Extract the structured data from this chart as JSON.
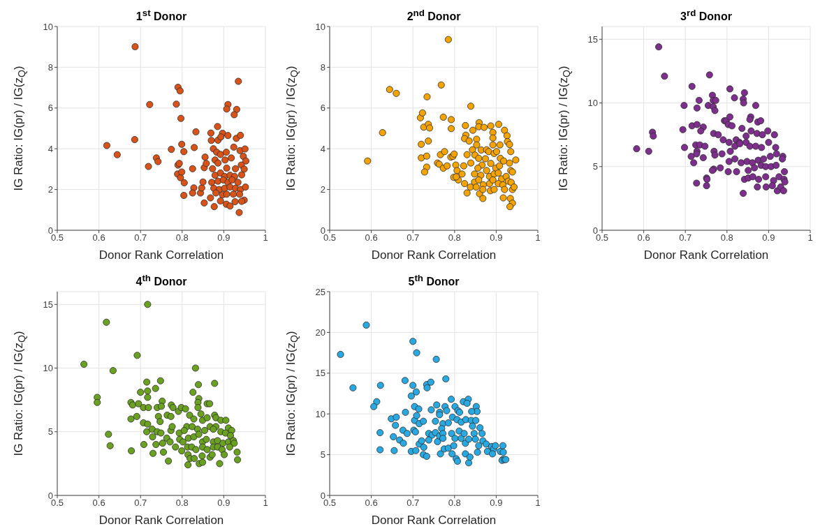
{
  "chart_data": [
    {
      "type": "scatter",
      "title": "1$^{st}$ Donor",
      "xlabel": "Donor Rank Correlation",
      "ylabel": "IG Ratio: IG(pr) / IG(z$_{Q}$)",
      "xlim": [
        0.5,
        1
      ],
      "xticks": [
        0.5,
        0.6,
        0.7,
        0.8,
        0.9,
        1
      ],
      "ylim": [
        0,
        10
      ],
      "yticks": [
        0,
        2,
        4,
        6,
        8,
        10
      ],
      "grid": true,
      "marker": "circle",
      "color": "#d95319",
      "x": [
        0.687,
        0.935,
        0.79,
        0.795,
        0.722,
        0.786,
        0.797,
        0.91,
        0.907,
        0.931,
        0.925,
        0.619,
        0.644,
        0.686,
        0.719,
        0.738,
        0.742,
        0.774,
        0.799,
        0.804,
        0.79,
        0.793,
        0.789,
        0.796,
        0.799,
        0.805,
        0.804,
        0.829,
        0.833,
        0.825,
        0.828,
        0.825,
        0.844,
        0.847,
        0.85,
        0.855,
        0.853,
        0.858,
        0.853,
        0.869,
        0.885,
        0.897,
        0.91,
        0.93,
        0.94,
        0.87,
        0.886,
        0.893,
        0.875,
        0.883,
        0.892,
        0.906,
        0.924,
        0.939,
        0.951,
        0.879,
        0.903,
        0.918,
        0.947,
        0.953,
        0.873,
        0.886,
        0.907,
        0.928,
        0.942,
        0.949,
        0.879,
        0.892,
        0.902,
        0.915,
        0.926,
        0.943,
        0.871,
        0.886,
        0.899,
        0.91,
        0.92,
        0.934,
        0.876,
        0.889,
        0.902,
        0.915,
        0.928,
        0.94,
        0.952,
        0.868,
        0.881,
        0.897,
        0.907,
        0.923,
        0.938,
        0.949,
        0.877,
        0.892,
        0.906,
        0.915,
        0.927,
        0.943,
        0.937
      ],
      "values": [
        9.01,
        7.31,
        7.02,
        6.84,
        6.17,
        6.19,
        5.49,
        6.17,
        5.95,
        5.93,
        5.67,
        4.16,
        3.71,
        4.45,
        3.13,
        3.55,
        3.37,
        3.97,
        4.22,
        3.86,
        3.2,
        3.28,
        2.76,
        2.58,
        2.86,
        2.33,
        1.71,
        4.06,
        4.83,
        3.02,
        2.08,
        1.83,
        1.83,
        2.08,
        2.37,
        3.59,
        3.07,
        3.28,
        1.34,
        4.77,
        5.09,
        4.76,
        4.65,
        4.51,
        4.66,
        4.41,
        4.42,
        4.58,
        4.0,
        3.83,
        3.72,
        3.83,
        4.08,
        3.91,
        3.99,
        3.45,
        3.45,
        3.55,
        3.63,
        3.4,
        3.02,
        3.3,
        3.05,
        3.02,
        3.2,
        3.0,
        2.7,
        2.81,
        2.64,
        2.7,
        2.64,
        2.72,
        2.35,
        2.41,
        2.47,
        2.35,
        2.47,
        2.35,
        2.06,
        2.0,
        2.06,
        2.12,
        2.06,
        2.0,
        2.12,
        1.59,
        1.83,
        1.74,
        1.77,
        1.77,
        1.77,
        1.48,
        1.16,
        1.44,
        1.28,
        1.19,
        1.4,
        1.42,
        0.87
      ]
    },
    {
      "type": "scatter",
      "title": "2$^{nd}$ Donor",
      "xlabel": "Donor Rank Correlation",
      "ylabel": "IG Ratio: IG(pr) / IG(z$_{Q}$)",
      "xlim": [
        0.5,
        1
      ],
      "xticks": [
        0.5,
        0.6,
        0.7,
        0.8,
        0.9,
        1
      ],
      "ylim": [
        0,
        10
      ],
      "yticks": [
        0,
        2,
        4,
        6,
        8,
        10
      ],
      "grid": true,
      "marker": "circle",
      "color": "#f5a300",
      "x": [
        0.785,
        0.768,
        0.644,
        0.66,
        0.734,
        0.839,
        0.718,
        0.723,
        0.773,
        0.792,
        0.792,
        0.726,
        0.737,
        0.74,
        0.627,
        0.737,
        0.72,
        0.591,
        0.72,
        0.733,
        0.733,
        0.728,
        0.759,
        0.763,
        0.766,
        0.773,
        0.776,
        0.782,
        0.791,
        0.796,
        0.799,
        0.803,
        0.798,
        0.806,
        0.809,
        0.804,
        0.818,
        0.822,
        0.826,
        0.827,
        0.824,
        0.835,
        0.844,
        0.859,
        0.858,
        0.871,
        0.853,
        0.887,
        0.892,
        0.892,
        0.892,
        0.906,
        0.909,
        0.92,
        0.926,
        0.927,
        0.932,
        0.935,
        0.947,
        0.932,
        0.83,
        0.839,
        0.843,
        0.849,
        0.853,
        0.864,
        0.877,
        0.882,
        0.858,
        0.866,
        0.874,
        0.887,
        0.895,
        0.901,
        0.91,
        0.918,
        0.899,
        0.908,
        0.848,
        0.856,
        0.863,
        0.877,
        0.884,
        0.895,
        0.905,
        0.913,
        0.924,
        0.935,
        0.939,
        0.824,
        0.838,
        0.848,
        0.858,
        0.869,
        0.884,
        0.892,
        0.905,
        0.916,
        0.929,
        0.936,
        0.83,
        0.852,
        0.86,
        0.868,
        0.886,
        0.895,
        0.92,
        0.939,
        0.943,
        0.868,
        0.917,
        0.934,
        0.939,
        0.933
      ],
      "values": [
        9.36,
        7.13,
        6.91,
        6.72,
        6.55,
        6.09,
        5.52,
        5.76,
        5.55,
        5.43,
        4.99,
        5.06,
        5.2,
        5.02,
        4.79,
        4.38,
        4.22,
        3.4,
        3.55,
        3.64,
        3.1,
        2.86,
        3.3,
        3.24,
        3.71,
        3.05,
        3.86,
        3.16,
        3.59,
        3.63,
        3.74,
        3.2,
        2.6,
        2.93,
        2.47,
        2.62,
        2.76,
        3.16,
        5.14,
        4.67,
        4.5,
        4.38,
        4.91,
        5.28,
        5.08,
        5.05,
        4.47,
        5.12,
        4.8,
        4.53,
        4.19,
        5.2,
        4.19,
        4.91,
        4.64,
        4.35,
        4.21,
        3.86,
        3.45,
        3.3,
        3.71,
        3.3,
        3.95,
        3.69,
        4.19,
        3.94,
        3.95,
        3.86,
        3.53,
        3.2,
        3.51,
        3.28,
        3.77,
        3.86,
        3.53,
        3.4,
        3.05,
        3.16,
        2.76,
        3.05,
        2.7,
        2.93,
        2.64,
        2.76,
        2.81,
        2.52,
        2.64,
        2.93,
        2.86,
        2.29,
        2.12,
        2.37,
        2.47,
        2.23,
        2.29,
        2.47,
        2.29,
        2.23,
        2.41,
        2.35,
        1.83,
        2.12,
        1.79,
        2.0,
        1.94,
        2.0,
        2.0,
        2.0,
        2.12,
        1.56,
        1.59,
        1.56,
        1.33,
        1.16
      ]
    },
    {
      "type": "scatter",
      "title": "3$^{rd}$ Donor",
      "xlabel": "Donor Rank Correlation",
      "ylabel": "IG Ratio: IG(pr) / IG(z$_{Q}$)",
      "xlim": [
        0.5,
        1
      ],
      "xticks": [
        0.5,
        0.6,
        0.7,
        0.8,
        0.9,
        1
      ],
      "ylim": [
        0,
        16
      ],
      "yticks": [
        0,
        5,
        10,
        15
      ],
      "grid": true,
      "marker": "circle",
      "color": "#7e2f8e",
      "x": [
        0.636,
        0.65,
        0.758,
        0.716,
        0.807,
        0.818,
        0.842,
        0.839,
        0.84,
        0.765,
        0.767,
        0.773,
        0.733,
        0.697,
        0.728,
        0.755,
        0.767,
        0.771,
        0.869,
        0.794,
        0.798,
        0.807,
        0.857,
        0.855,
        0.874,
        0.881,
        0.716,
        0.728,
        0.743,
        0.737,
        0.694,
        0.621,
        0.623,
        0.768,
        0.779,
        0.803,
        0.812,
        0.583,
        0.612,
        0.698,
        0.725,
        0.735,
        0.747,
        0.728,
        0.727,
        0.714,
        0.72,
        0.743,
        0.769,
        0.771,
        0.788,
        0.791,
        0.805,
        0.822,
        0.83,
        0.836,
        0.846,
        0.858,
        0.872,
        0.885,
        0.898,
        0.914,
        0.808,
        0.819,
        0.831,
        0.846,
        0.855,
        0.869,
        0.883,
        0.9,
        0.917,
        0.805,
        0.819,
        0.834,
        0.848,
        0.861,
        0.875,
        0.888,
        0.904,
        0.919,
        0.934,
        0.933,
        0.803,
        0.823,
        0.851,
        0.866,
        0.882,
        0.893,
        0.906,
        0.918,
        0.768,
        0.784,
        0.765,
        0.751,
        0.752,
        0.727,
        0.751,
        0.842,
        0.851,
        0.862,
        0.876,
        0.893,
        0.912,
        0.925,
        0.938,
        0.937,
        0.839,
        0.873,
        0.894,
        0.909,
        0.921,
        0.929,
        0.936,
        0.939
      ],
      "values": [
        14.4,
        12.1,
        12.2,
        11.3,
        11.1,
        10.4,
        10.8,
        10.3,
        10.0,
        10.6,
        10.2,
        10.2,
        10.2,
        9.8,
        9.6,
        9.8,
        9.7,
        9.4,
        9.8,
        8.6,
        8.6,
        8.9,
        8.9,
        8.7,
        8.5,
        8.6,
        8.2,
        8.3,
        8.1,
        7.8,
        7.9,
        7.7,
        7.4,
        7.6,
        7.5,
        8.3,
        8.2,
        6.4,
        6.2,
        6.5,
        6.7,
        6.7,
        6.6,
        6.2,
        6.0,
        5.8,
        5.3,
        5.7,
        6.2,
        5.9,
        6.0,
        7.1,
        6.9,
        7.1,
        6.9,
        8.0,
        7.4,
        7.8,
        7.6,
        7.5,
        7.8,
        7.5,
        6.2,
        6.6,
        6.8,
        6.9,
        6.6,
        6.6,
        6.5,
        6.9,
        6.5,
        5.4,
        5.6,
        5.3,
        5.4,
        5.3,
        5.5,
        5.6,
        5.8,
        6.0,
        5.8,
        5.6,
        4.6,
        4.6,
        4.7,
        4.9,
        5.1,
        5.0,
        5.0,
        5.1,
        4.8,
        4.9,
        4.7,
        4.1,
        4.0,
        3.7,
        3.5,
        4.0,
        4.1,
        4.2,
        4.0,
        4.2,
        3.9,
        4.2,
        4.6,
        4.0,
        2.9,
        3.4,
        3.4,
        3.5,
        3.1,
        3.4,
        3.1,
        3.8
      ]
    },
    {
      "type": "scatter",
      "title": "4$^{th}$ Donor",
      "xlabel": "Donor Rank Correlation",
      "ylabel": "IG Ratio: IG(pr) / IG(z$_{Q}$)",
      "xlim": [
        0.5,
        1
      ],
      "xticks": [
        0.5,
        0.6,
        0.7,
        0.8,
        0.9,
        1
      ],
      "ylim": [
        0,
        16
      ],
      "yticks": [
        0,
        5,
        10,
        15
      ],
      "grid": true,
      "marker": "circle",
      "color": "#6aa121",
      "x": [
        0.717,
        0.618,
        0.564,
        0.692,
        0.634,
        0.832,
        0.596,
        0.596,
        0.623,
        0.627,
        0.715,
        0.748,
        0.736,
        0.7,
        0.717,
        0.717,
        0.839,
        0.878,
        0.826,
        0.84,
        0.677,
        0.681,
        0.695,
        0.707,
        0.719,
        0.74,
        0.752,
        0.75,
        0.774,
        0.778,
        0.791,
        0.798,
        0.808,
        0.764,
        0.773,
        0.743,
        0.747,
        0.691,
        0.677,
        0.707,
        0.717,
        0.715,
        0.728,
        0.838,
        0.838,
        0.86,
        0.866,
        0.845,
        0.878,
        0.881,
        0.893,
        0.905,
        0.818,
        0.828,
        0.849,
        0.86,
        0.867,
        0.881,
        0.911,
        0.919,
        0.811,
        0.824,
        0.837,
        0.854,
        0.875,
        0.893,
        0.904,
        0.916,
        0.74,
        0.749,
        0.763,
        0.773,
        0.776,
        0.729,
        0.737,
        0.753,
        0.771,
        0.793,
        0.805,
        0.794,
        0.802,
        0.815,
        0.828,
        0.84,
        0.849,
        0.858,
        0.875,
        0.885,
        0.898,
        0.911,
        0.923,
        0.925,
        0.784,
        0.799,
        0.813,
        0.823,
        0.833,
        0.849,
        0.86,
        0.875,
        0.885,
        0.896,
        0.914,
        0.708,
        0.678,
        0.73,
        0.755,
        0.767,
        0.814,
        0.819,
        0.829,
        0.848,
        0.867,
        0.872,
        0.89,
        0.901,
        0.932,
        0.933,
        0.814,
        0.841,
        0.849
      ],
      "values": [
        15.0,
        13.6,
        10.3,
        11.0,
        9.8,
        10.0,
        7.7,
        7.3,
        4.8,
        3.9,
        8.9,
        9.0,
        8.4,
        8.1,
        8.2,
        7.7,
        8.7,
        8.8,
        8.1,
        7.6,
        7.3,
        7.1,
        7.2,
        6.9,
        6.9,
        6.9,
        7.4,
        7.0,
        7.1,
        6.9,
        6.6,
        6.9,
        6.8,
        6.3,
        6.2,
        6.2,
        5.8,
        6.2,
        6.0,
        5.7,
        5.6,
        5.0,
        5.2,
        7.3,
        6.9,
        7.2,
        7.2,
        6.4,
        6.3,
        6.1,
        5.9,
        5.9,
        6.3,
        6.0,
        5.9,
        6.1,
        5.4,
        5.4,
        5.3,
        5.1,
        5.4,
        5.4,
        5.2,
        5.1,
        5.2,
        5.0,
        4.9,
        4.7,
        5.0,
        4.9,
        4.5,
        5.1,
        5.4,
        4.6,
        4.0,
        4.1,
        4.2,
        4.9,
        5.1,
        4.4,
        4.2,
        4.5,
        4.6,
        4.8,
        4.2,
        4.4,
        4.2,
        4.3,
        4.1,
        4.2,
        4.3,
        4.1,
        3.8,
        3.5,
        3.8,
        3.8,
        3.6,
        3.8,
        3.6,
        3.8,
        3.8,
        3.6,
        3.8,
        4.0,
        3.5,
        3.3,
        3.4,
        2.7,
        3.2,
        2.9,
        2.9,
        3.1,
        3.0,
        3.2,
        2.5,
        3.2,
        3.4,
        2.8,
        2.4,
        2.5,
        2.6
      ]
    },
    {
      "type": "scatter",
      "title": "5$^{th}$ Donor",
      "xlabel": "Donor Rank Correlation",
      "ylabel": "IG Ratio: IG(pr) / IG(z$_{Q}$)",
      "xlim": [
        0.5,
        1
      ],
      "xticks": [
        0.5,
        0.6,
        0.7,
        0.8,
        0.9,
        1
      ],
      "ylim": [
        0,
        25
      ],
      "yticks": [
        0,
        5,
        10,
        15,
        20,
        25
      ],
      "grid": true,
      "marker": "circle",
      "color": "#29a9e1",
      "x": [
        0.588,
        0.526,
        0.7,
        0.709,
        0.756,
        0.556,
        0.622,
        0.681,
        0.7,
        0.708,
        0.696,
        0.733,
        0.734,
        0.743,
        0.779,
        0.613,
        0.606,
        0.792,
        0.821,
        0.833,
        0.83,
        0.852,
        0.854,
        0.704,
        0.714,
        0.757,
        0.744,
        0.764,
        0.777,
        0.781,
        0.801,
        0.808,
        0.812,
        0.841,
        0.648,
        0.66,
        0.682,
        0.658,
        0.621,
        0.653,
        0.668,
        0.677,
        0.676,
        0.686,
        0.704,
        0.709,
        0.715,
        0.725,
        0.702,
        0.706,
        0.754,
        0.764,
        0.772,
        0.769,
        0.785,
        0.795,
        0.806,
        0.816,
        0.827,
        0.84,
        0.851,
        0.621,
        0.655,
        0.696,
        0.707,
        0.715,
        0.721,
        0.726,
        0.725,
        0.733,
        0.738,
        0.746,
        0.754,
        0.759,
        0.764,
        0.772,
        0.772,
        0.738,
        0.766,
        0.775,
        0.785,
        0.793,
        0.801,
        0.798,
        0.794,
        0.804,
        0.807,
        0.811,
        0.816,
        0.823,
        0.826,
        0.826,
        0.834,
        0.834,
        0.837,
        0.843,
        0.847,
        0.85,
        0.855,
        0.858,
        0.861,
        0.866,
        0.868,
        0.876,
        0.879,
        0.889,
        0.894,
        0.898,
        0.891,
        0.91,
        0.916,
        0.916,
        0.917,
        0.914,
        0.92,
        0.923
      ],
      "values": [
        20.9,
        17.3,
        18.9,
        17.5,
        16.7,
        13.2,
        13.5,
        14.1,
        13.5,
        12.7,
        12.2,
        13.6,
        13.2,
        13.9,
        14.3,
        11.5,
        10.9,
        11.8,
        11.5,
        11.8,
        11.3,
        10.9,
        10.3,
        10.9,
        10.6,
        11.1,
        10.5,
        10.2,
        10.9,
        10.4,
        10.9,
        10.4,
        10.2,
        10.3,
        9.4,
        9.6,
        10.2,
        8.6,
        7.7,
        7.2,
        6.8,
        6.4,
        8.0,
        7.6,
        9.2,
        9.8,
        8.8,
        9.1,
        8.0,
        7.8,
        9.1,
        9.9,
        8.8,
        8.2,
        8.9,
        9.6,
        9.3,
        9.0,
        9.3,
        9.2,
        9.2,
        5.6,
        5.5,
        5.4,
        5.5,
        6.3,
        6.7,
        5.9,
        5.0,
        4.8,
        7.6,
        7.4,
        7.7,
        6.6,
        7.3,
        7.6,
        7.0,
        6.8,
        5.1,
        5.7,
        5.8,
        7.6,
        7.0,
        6.1,
        5.1,
        4.5,
        4.2,
        7.9,
        7.0,
        7.6,
        6.4,
        5.1,
        6.9,
        4.0,
        4.7,
        8.5,
        7.6,
        6.9,
        5.3,
        6.1,
        8.3,
        7.6,
        6.7,
        6.3,
        5.4,
        6.0,
        5.7,
        6.1,
        5.1,
        5.4,
        4.4,
        6.1,
        5.3,
        4.3,
        4.4,
        4.4
      ]
    }
  ]
}
